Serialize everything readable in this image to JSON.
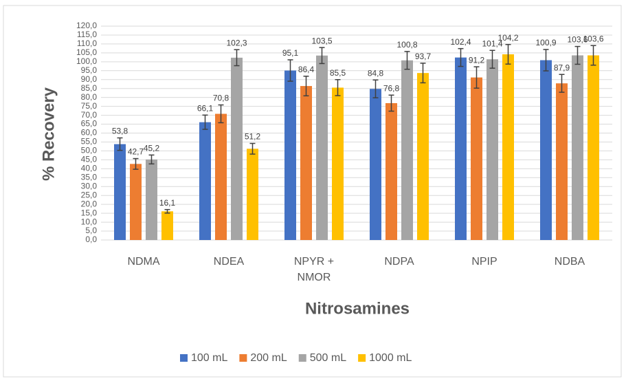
{
  "chart_data": {
    "type": "bar",
    "y_label": "% Recovery",
    "x_label": "Nitrosamines",
    "categories": [
      "NDMA",
      "NDEA",
      "NPYR +\nNMOR",
      "NDPA",
      "NPIP",
      "NDBA"
    ],
    "series": [
      {
        "name": "100 mL",
        "color": "#4472c4",
        "values": [
          53.8,
          66.1,
          95.1,
          84.8,
          102.4,
          100.9
        ],
        "value_labels": [
          "53,8",
          "66,1",
          "95,1",
          "84,8",
          "102,4",
          "100,9"
        ],
        "errors": [
          3.5,
          4,
          6,
          5,
          5,
          6
        ]
      },
      {
        "name": "200 mL",
        "color": "#ed7d31",
        "values": [
          42.7,
          70.8,
          86.4,
          76.8,
          91.2,
          87.9
        ],
        "value_labels": [
          "42,7",
          "70,8",
          "86,4",
          "76,8",
          "91,2",
          "87,9"
        ],
        "errors": [
          3,
          5,
          5.5,
          4.5,
          6,
          5
        ]
      },
      {
        "name": "500 mL",
        "color": "#a5a5a5",
        "values": [
          45.2,
          102.3,
          103.5,
          100.8,
          101.4,
          103.6
        ],
        "value_labels": [
          "45,2",
          "102,3",
          "103,5",
          "100,8",
          "101,4",
          "103,6"
        ],
        "errors": [
          2.5,
          4.5,
          4.5,
          5,
          5,
          5
        ]
      },
      {
        "name": "1000 mL",
        "color": "#ffc000",
        "values": [
          16.1,
          51.2,
          85.5,
          93.7,
          104.2,
          103.6
        ],
        "value_labels": [
          "16,1",
          "51,2",
          "85,5",
          "93,7",
          "104,2",
          "103,6"
        ],
        "errors": [
          1,
          3,
          4.5,
          5.5,
          5.5,
          5.5
        ]
      }
    ],
    "ylim": [
      0,
      120
    ],
    "yticks": [
      {
        "value": 0,
        "label": "0,0"
      },
      {
        "value": 5,
        "label": "5,0"
      },
      {
        "value": 10,
        "label": "10,0"
      },
      {
        "value": 15,
        "label": "15,0"
      },
      {
        "value": 20,
        "label": "20,0"
      },
      {
        "value": 25,
        "label": "25,0"
      },
      {
        "value": 30,
        "label": "30,0"
      },
      {
        "value": 35,
        "label": "35,0"
      },
      {
        "value": 40,
        "label": "40,0"
      },
      {
        "value": 45,
        "label": "45,0"
      },
      {
        "value": 50,
        "label": "50,0"
      },
      {
        "value": 55,
        "label": "55,0"
      },
      {
        "value": 60,
        "label": "60,0"
      },
      {
        "value": 65,
        "label": "65,0"
      },
      {
        "value": 70,
        "label": "70,0"
      },
      {
        "value": 75,
        "label": "75,0"
      },
      {
        "value": 80,
        "label": "80,0"
      },
      {
        "value": 85,
        "label": "85,0"
      },
      {
        "value": 90,
        "label": "90,0"
      },
      {
        "value": 95,
        "label": "95,0"
      },
      {
        "value": 100,
        "label": "100,0"
      },
      {
        "value": 105,
        "label": "105,0"
      },
      {
        "value": 110,
        "label": "110,0"
      },
      {
        "value": 115,
        "label": "115,0"
      },
      {
        "value": 120,
        "label": "120,0"
      }
    ],
    "grid": true,
    "legend": "bottom"
  }
}
